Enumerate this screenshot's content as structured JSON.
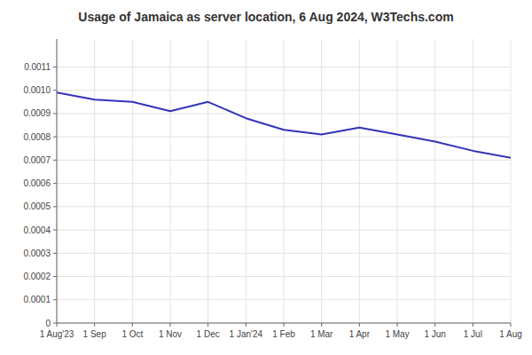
{
  "chart_data": {
    "type": "line",
    "title": "Usage of Jamaica as server location, 6 Aug 2024, W3Techs.com",
    "categories": [
      "1 Aug'23",
      "1 Sep",
      "1 Oct",
      "1 Nov",
      "1 Dec",
      "1 Jan'24",
      "1 Feb",
      "1 Mar",
      "1 Apr",
      "1 May",
      "1 Jun",
      "1 Jul",
      "1 Aug"
    ],
    "values": [
      0.00099,
      0.00096,
      0.00095,
      0.00091,
      0.00095,
      0.00088,
      0.00083,
      0.00081,
      0.00084,
      0.00081,
      0.00078,
      0.00074,
      0.00071
    ],
    "color": "#3333bb",
    "ylim": [
      0,
      0.00122
    ],
    "yticks": [
      0,
      0.0001,
      0.0002,
      0.0003,
      0.0004,
      0.0005,
      0.0006,
      0.0007,
      0.0008,
      0.0009,
      {
        "value": 0.001,
        "label": "0.0010"
      },
      0.0011
    ],
    "grid": true
  }
}
